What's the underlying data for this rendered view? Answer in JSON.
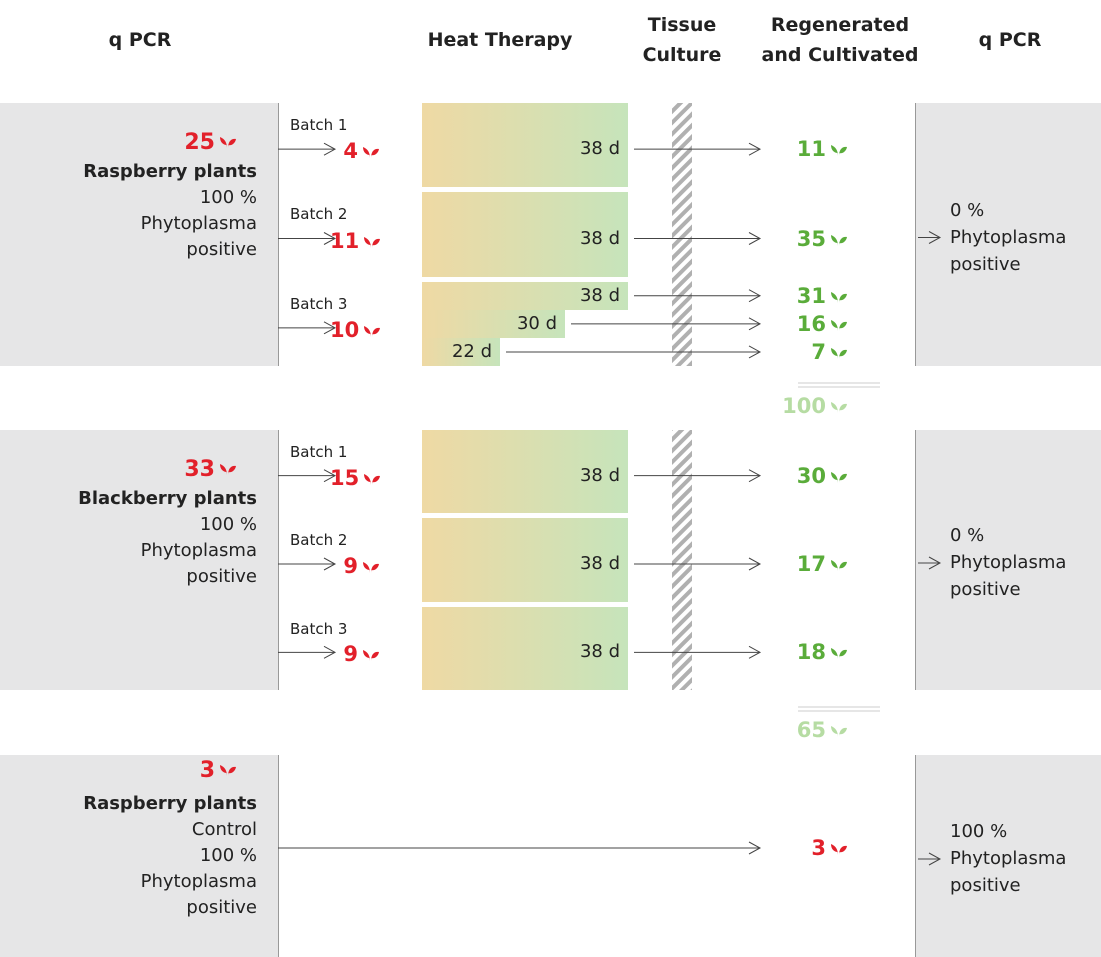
{
  "headers": [
    "q PCR",
    "Heat Therapy",
    "Tissue Culture",
    "Regenerated and Cultivated",
    "q PCR"
  ],
  "groups": [
    {
      "count": 25,
      "name": "Raspberry plants",
      "lines": [
        "100 %",
        "Phytoplasma",
        "positive"
      ],
      "batches": [
        {
          "label": "Batch 1",
          "count": 4,
          "runs": [
            {
              "days": "38 d",
              "result": 11
            }
          ]
        },
        {
          "label": "Batch 2",
          "count": 11,
          "runs": [
            {
              "days": "38 d",
              "result": 35
            }
          ]
        },
        {
          "label": "Batch 3",
          "count": 10,
          "runs": [
            {
              "days": "38 d",
              "result": 31
            },
            {
              "days": "30 d",
              "result": 16
            },
            {
              "days": "22 d",
              "result": 7
            }
          ]
        }
      ],
      "total": 100,
      "outcome": [
        "0 %",
        "Phytoplasma",
        "positive"
      ]
    },
    {
      "count": 33,
      "name": "Blackberry plants",
      "lines": [
        "100 %",
        "Phytoplasma",
        "positive"
      ],
      "batches": [
        {
          "label": "Batch 1",
          "count": 15,
          "runs": [
            {
              "days": "38 d",
              "result": 30
            }
          ]
        },
        {
          "label": "Batch 2",
          "count": 9,
          "runs": [
            {
              "days": "38 d",
              "result": 17
            }
          ]
        },
        {
          "label": "Batch 3",
          "count": 9,
          "runs": [
            {
              "days": "38 d",
              "result": 18
            }
          ]
        }
      ],
      "total": 65,
      "outcome": [
        "0 %",
        "Phytoplasma",
        "positive"
      ]
    },
    {
      "count": 3,
      "name": "Raspberry plants",
      "lines": [
        "Control",
        "100 %",
        "Phytoplasma",
        "positive"
      ],
      "result": 3,
      "outcome": [
        "100 %",
        "Phytoplasma",
        "positive"
      ]
    }
  ]
}
